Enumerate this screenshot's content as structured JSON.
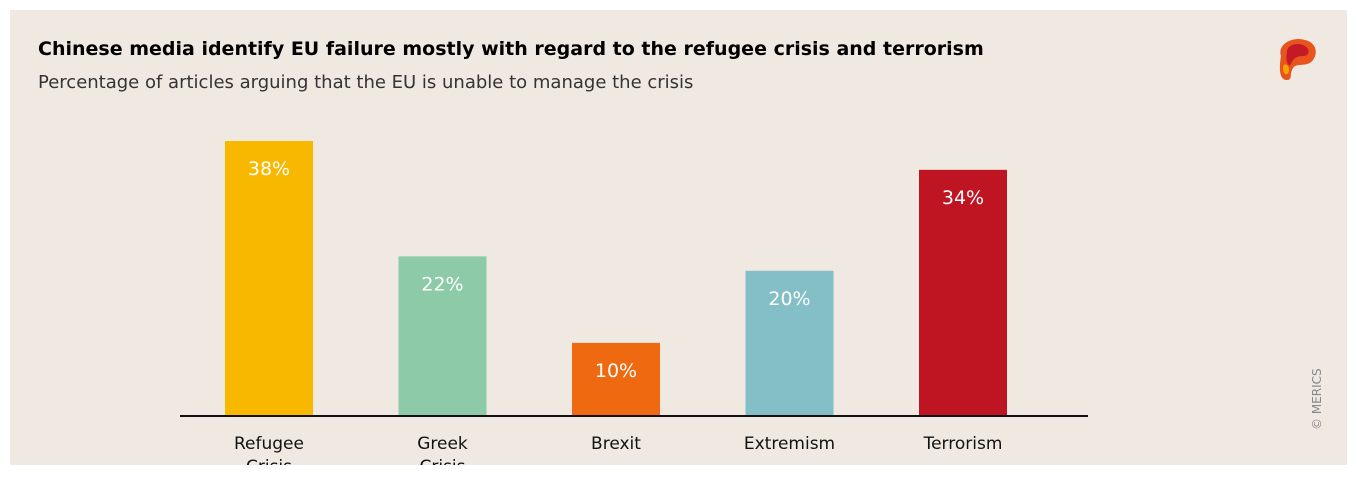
{
  "chart_data": {
    "type": "bar",
    "title": "Chinese media identify EU failure mostly with regard to the refugee crisis and terrorism",
    "subtitle": "Percentage of articles arguing that the EU is unable to manage the crisis",
    "categories": [
      [
        "Refugee",
        "Crisis"
      ],
      [
        "Greek",
        "Crisis"
      ],
      [
        "Brexit"
      ],
      [
        "Extremism"
      ],
      [
        "Terrorism"
      ]
    ],
    "values": [
      38,
      22,
      10,
      20,
      34
    ],
    "value_labels": [
      "38%",
      "22%",
      "10%",
      "20%",
      "34%"
    ],
    "colors": [
      "#f8b800",
      "#8ccaa8",
      "#ee6910",
      "#84bfc7",
      "#bf1422"
    ],
    "ylim": [
      0,
      38
    ],
    "grid": false,
    "xlabel": "",
    "ylabel": ""
  },
  "branding": {
    "copyright": "© MERICS",
    "logo_icon": "merics-logo-icon"
  }
}
